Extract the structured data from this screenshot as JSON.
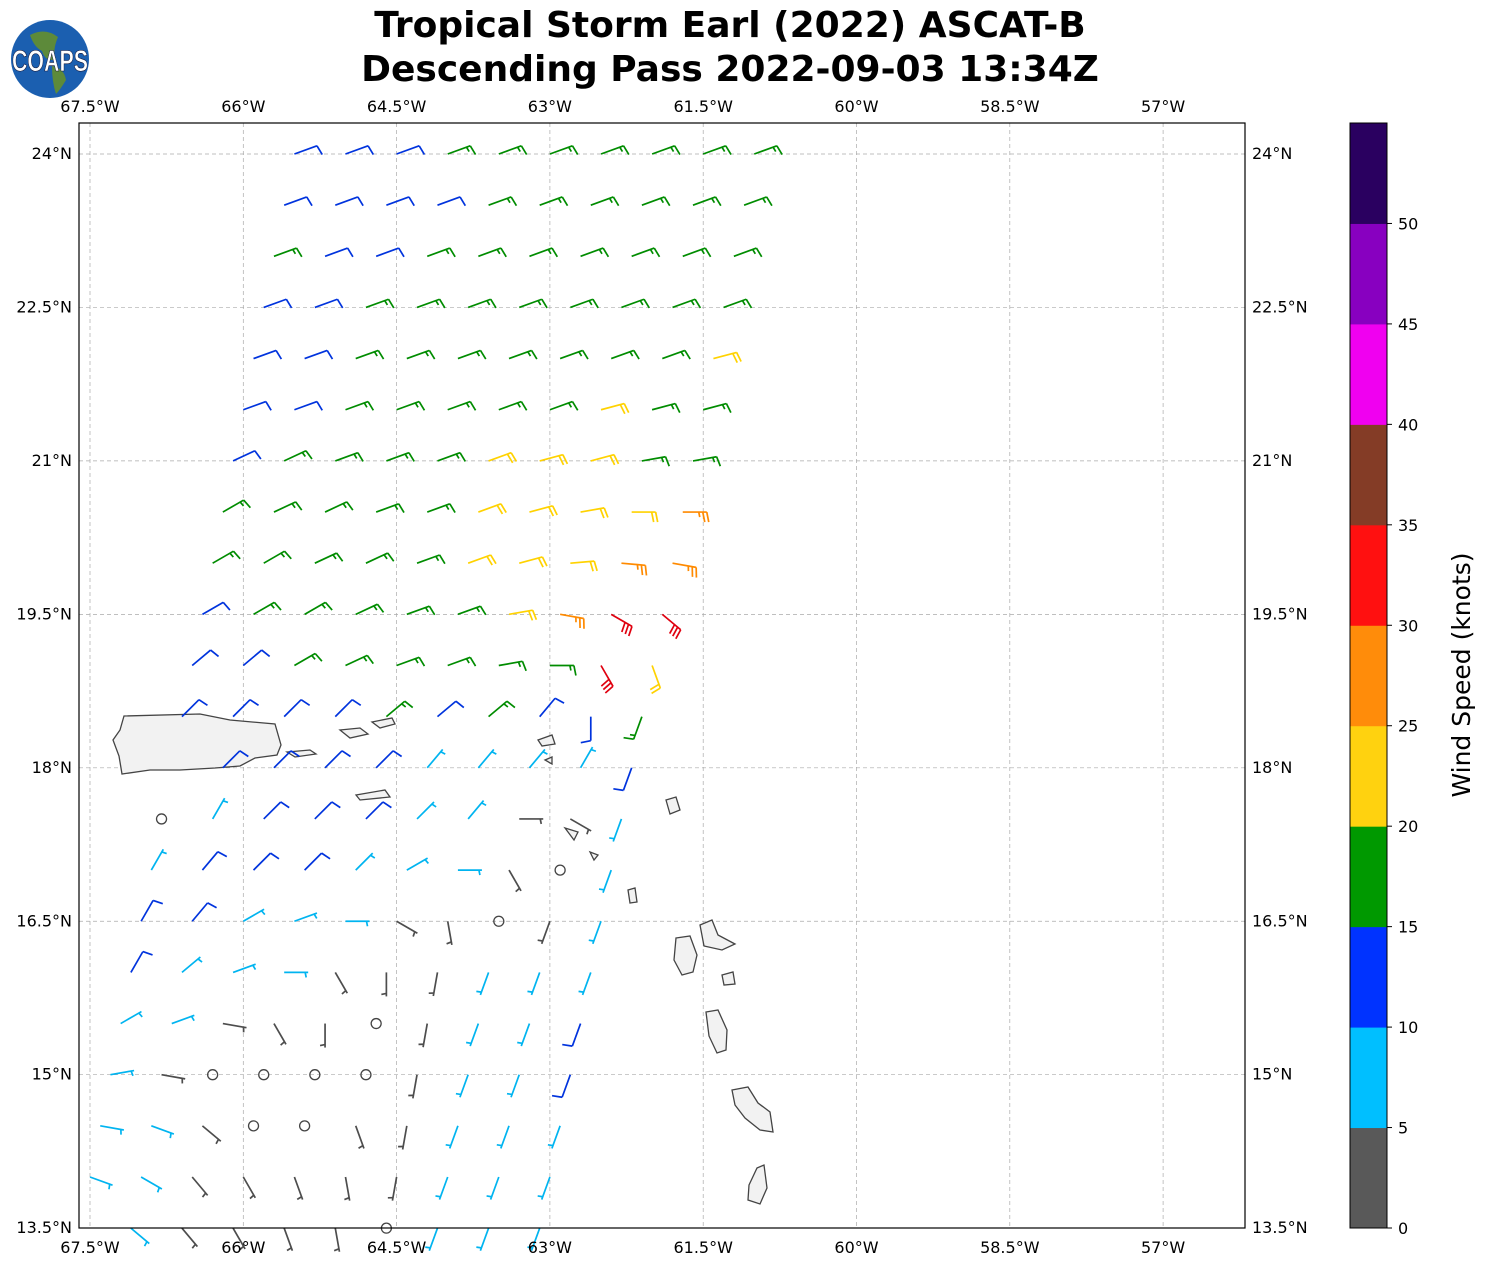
{
  "title": {
    "line1": "Tropical Storm Earl (2022) ASCAT-B",
    "line2": "Descending Pass 2022-09-03 13:34Z"
  },
  "logo": {
    "text": "COAPS"
  },
  "map": {
    "lon_range": [
      -67.6,
      -56.2
    ],
    "lat_range": [
      13.5,
      24.3
    ],
    "grid": true,
    "lon_ticks": [
      -67.5,
      -66,
      -64.5,
      -63,
      -61.5,
      -60,
      -58.5,
      -57
    ],
    "lon_labels": [
      "67.5°W",
      "66°W",
      "64.5°W",
      "63°W",
      "61.5°W",
      "60°W",
      "58.5°W",
      "57°W"
    ],
    "lat_ticks": [
      24,
      22.5,
      21,
      19.5,
      18,
      16.5,
      15,
      13.5
    ],
    "lat_labels": [
      "24°N",
      "22.5°N",
      "21°N",
      "19.5°N",
      "18°N",
      "16.5°N",
      "15°N",
      "13.5°N"
    ]
  },
  "colorbar": {
    "label": "Wind Speed (knots)",
    "range": [
      0,
      55
    ],
    "ticks": [
      "0",
      "5",
      "10",
      "15",
      "20",
      "25",
      "30",
      "35",
      "40",
      "45",
      "50"
    ],
    "colors": [
      "#595959",
      "#00bfff",
      "#0033ff",
      "#009900",
      "#ffd20f",
      "#ff8c0a",
      "#ff1010",
      "#843c26",
      "#f000f0",
      "#8800c0",
      "#2a0060"
    ]
  },
  "chart_data": {
    "type": "wind-barbs",
    "units": "knots",
    "cell_spacing_deg": 0.5,
    "rows": [
      {
        "lat": 24.0,
        "lon0": -65.5,
        "spd": [
          12,
          12,
          12,
          17,
          17,
          17,
          17,
          17,
          17,
          17
        ],
        "dir": [
          70,
          70,
          70,
          70,
          70,
          70,
          70,
          70,
          70,
          70
        ]
      },
      {
        "lat": 23.5,
        "lon0": -65.6,
        "spd": [
          12,
          12,
          12,
          12,
          17,
          17,
          17,
          17,
          17,
          17
        ],
        "dir": [
          70,
          70,
          70,
          70,
          70,
          70,
          70,
          70,
          70,
          70
        ]
      },
      {
        "lat": 23.0,
        "lon0": -65.7,
        "spd": [
          17,
          12,
          12,
          17,
          17,
          17,
          17,
          17,
          17,
          17
        ],
        "dir": [
          70,
          70,
          70,
          70,
          70,
          70,
          70,
          70,
          70,
          70
        ]
      },
      {
        "lat": 22.5,
        "lon0": -65.8,
        "spd": [
          12,
          12,
          17,
          17,
          17,
          17,
          17,
          17,
          17,
          17
        ],
        "dir": [
          70,
          70,
          70,
          70,
          70,
          70,
          70,
          70,
          70,
          70
        ]
      },
      {
        "lat": 22.0,
        "lon0": -65.9,
        "spd": [
          12,
          12,
          17,
          17,
          17,
          17,
          17,
          17,
          17,
          22
        ],
        "dir": [
          70,
          70,
          70,
          70,
          70,
          70,
          70,
          70,
          70,
          75
        ]
      },
      {
        "lat": 21.5,
        "lon0": -66.0,
        "spd": [
          12,
          12,
          17,
          17,
          17,
          17,
          17,
          22,
          17,
          17
        ],
        "dir": [
          70,
          70,
          70,
          70,
          70,
          70,
          70,
          75,
          75,
          75
        ]
      },
      {
        "lat": 21.0,
        "lon0": -66.1,
        "spd": [
          12,
          17,
          17,
          17,
          17,
          22,
          22,
          22,
          17,
          17
        ],
        "dir": [
          65,
          65,
          70,
          70,
          70,
          70,
          75,
          75,
          80,
          80
        ]
      },
      {
        "lat": 20.5,
        "lon0": -66.2,
        "spd": [
          17,
          17,
          17,
          17,
          17,
          22,
          22,
          22,
          22,
          27
        ],
        "dir": [
          60,
          65,
          65,
          70,
          70,
          70,
          75,
          80,
          90,
          90
        ]
      },
      {
        "lat": 20.0,
        "lon0": -66.3,
        "spd": [
          17,
          17,
          17,
          17,
          17,
          22,
          22,
          22,
          27,
          27
        ],
        "dir": [
          60,
          60,
          65,
          65,
          70,
          70,
          75,
          85,
          95,
          100
        ]
      },
      {
        "lat": 19.5,
        "lon0": -66.4,
        "spd": [
          12,
          17,
          17,
          17,
          17,
          17,
          22,
          27,
          32,
          32
        ],
        "dir": [
          60,
          60,
          60,
          65,
          70,
          70,
          80,
          100,
          120,
          130
        ]
      },
      {
        "lat": 19.0,
        "lon0": -66.5,
        "spd": [
          12,
          12,
          17,
          17,
          17,
          17,
          17,
          17,
          32,
          22
        ],
        "dir": [
          50,
          50,
          60,
          65,
          70,
          70,
          80,
          90,
          150,
          160
        ]
      },
      {
        "lat": 18.5,
        "lon0": -66.6,
        "spd": [
          12,
          12,
          12,
          12,
          17,
          12,
          17,
          12,
          12,
          17
        ],
        "dir": [
          45,
          45,
          45,
          45,
          50,
          50,
          50,
          40,
          180,
          200
        ]
      },
      {
        "lat": 18.0,
        "lon0": -66.7,
        "spd": [
          null,
          12,
          12,
          12,
          12,
          7,
          7,
          7,
          7,
          12
        ],
        "dir": [
          0,
          45,
          45,
          45,
          45,
          40,
          40,
          40,
          30,
          200
        ]
      },
      {
        "lat": 17.5,
        "lon0": -66.8,
        "spd": [
          1,
          7,
          12,
          12,
          12,
          7,
          7,
          3,
          3,
          7
        ],
        "dir": [
          0,
          30,
          45,
          45,
          45,
          45,
          40,
          90,
          120,
          200
        ]
      },
      {
        "lat": 17.0,
        "lon0": -66.9,
        "spd": [
          7,
          12,
          12,
          12,
          7,
          7,
          7,
          3,
          1,
          7
        ],
        "dir": [
          30,
          40,
          45,
          45,
          45,
          60,
          90,
          150,
          0,
          200
        ]
      },
      {
        "lat": 16.5,
        "lon0": -67.0,
        "spd": [
          12,
          12,
          7,
          7,
          7,
          3,
          3,
          1,
          3,
          7
        ],
        "dir": [
          30,
          40,
          60,
          70,
          90,
          120,
          170,
          0,
          200,
          200
        ]
      },
      {
        "lat": 16.0,
        "lon0": -67.1,
        "spd": [
          12,
          7,
          7,
          7,
          3,
          3,
          3,
          7,
          7,
          7
        ],
        "dir": [
          30,
          50,
          70,
          90,
          150,
          180,
          190,
          200,
          200,
          200
        ]
      },
      {
        "lat": 15.5,
        "lon0": -67.2,
        "spd": [
          7,
          7,
          3,
          3,
          3,
          1,
          3,
          7,
          7,
          12
        ],
        "dir": [
          60,
          70,
          100,
          150,
          180,
          0,
          190,
          200,
          200,
          200
        ]
      },
      {
        "lat": 15.0,
        "lon0": -67.3,
        "spd": [
          7,
          3,
          1,
          1,
          1,
          1,
          3,
          7,
          7,
          12
        ],
        "dir": [
          80,
          100,
          0,
          0,
          0,
          0,
          190,
          200,
          200,
          200
        ]
      },
      {
        "lat": 14.5,
        "lon0": -67.4,
        "spd": [
          7,
          7,
          3,
          1,
          1,
          3,
          3,
          7,
          7,
          7
        ],
        "dir": [
          100,
          110,
          130,
          0,
          0,
          160,
          190,
          200,
          200,
          200
        ]
      },
      {
        "lat": 14.0,
        "lon0": -67.5,
        "spd": [
          7,
          7,
          3,
          3,
          3,
          3,
          3,
          7,
          7,
          7
        ],
        "dir": [
          110,
          120,
          140,
          150,
          160,
          170,
          190,
          200,
          200,
          200
        ]
      },
      {
        "lat": 13.5,
        "lon0": -67.6,
        "spd": [
          7,
          7,
          3,
          3,
          3,
          3,
          1,
          7,
          7,
          7
        ],
        "dir": [
          120,
          130,
          140,
          150,
          160,
          170,
          0,
          200,
          200,
          200
        ]
      }
    ]
  }
}
